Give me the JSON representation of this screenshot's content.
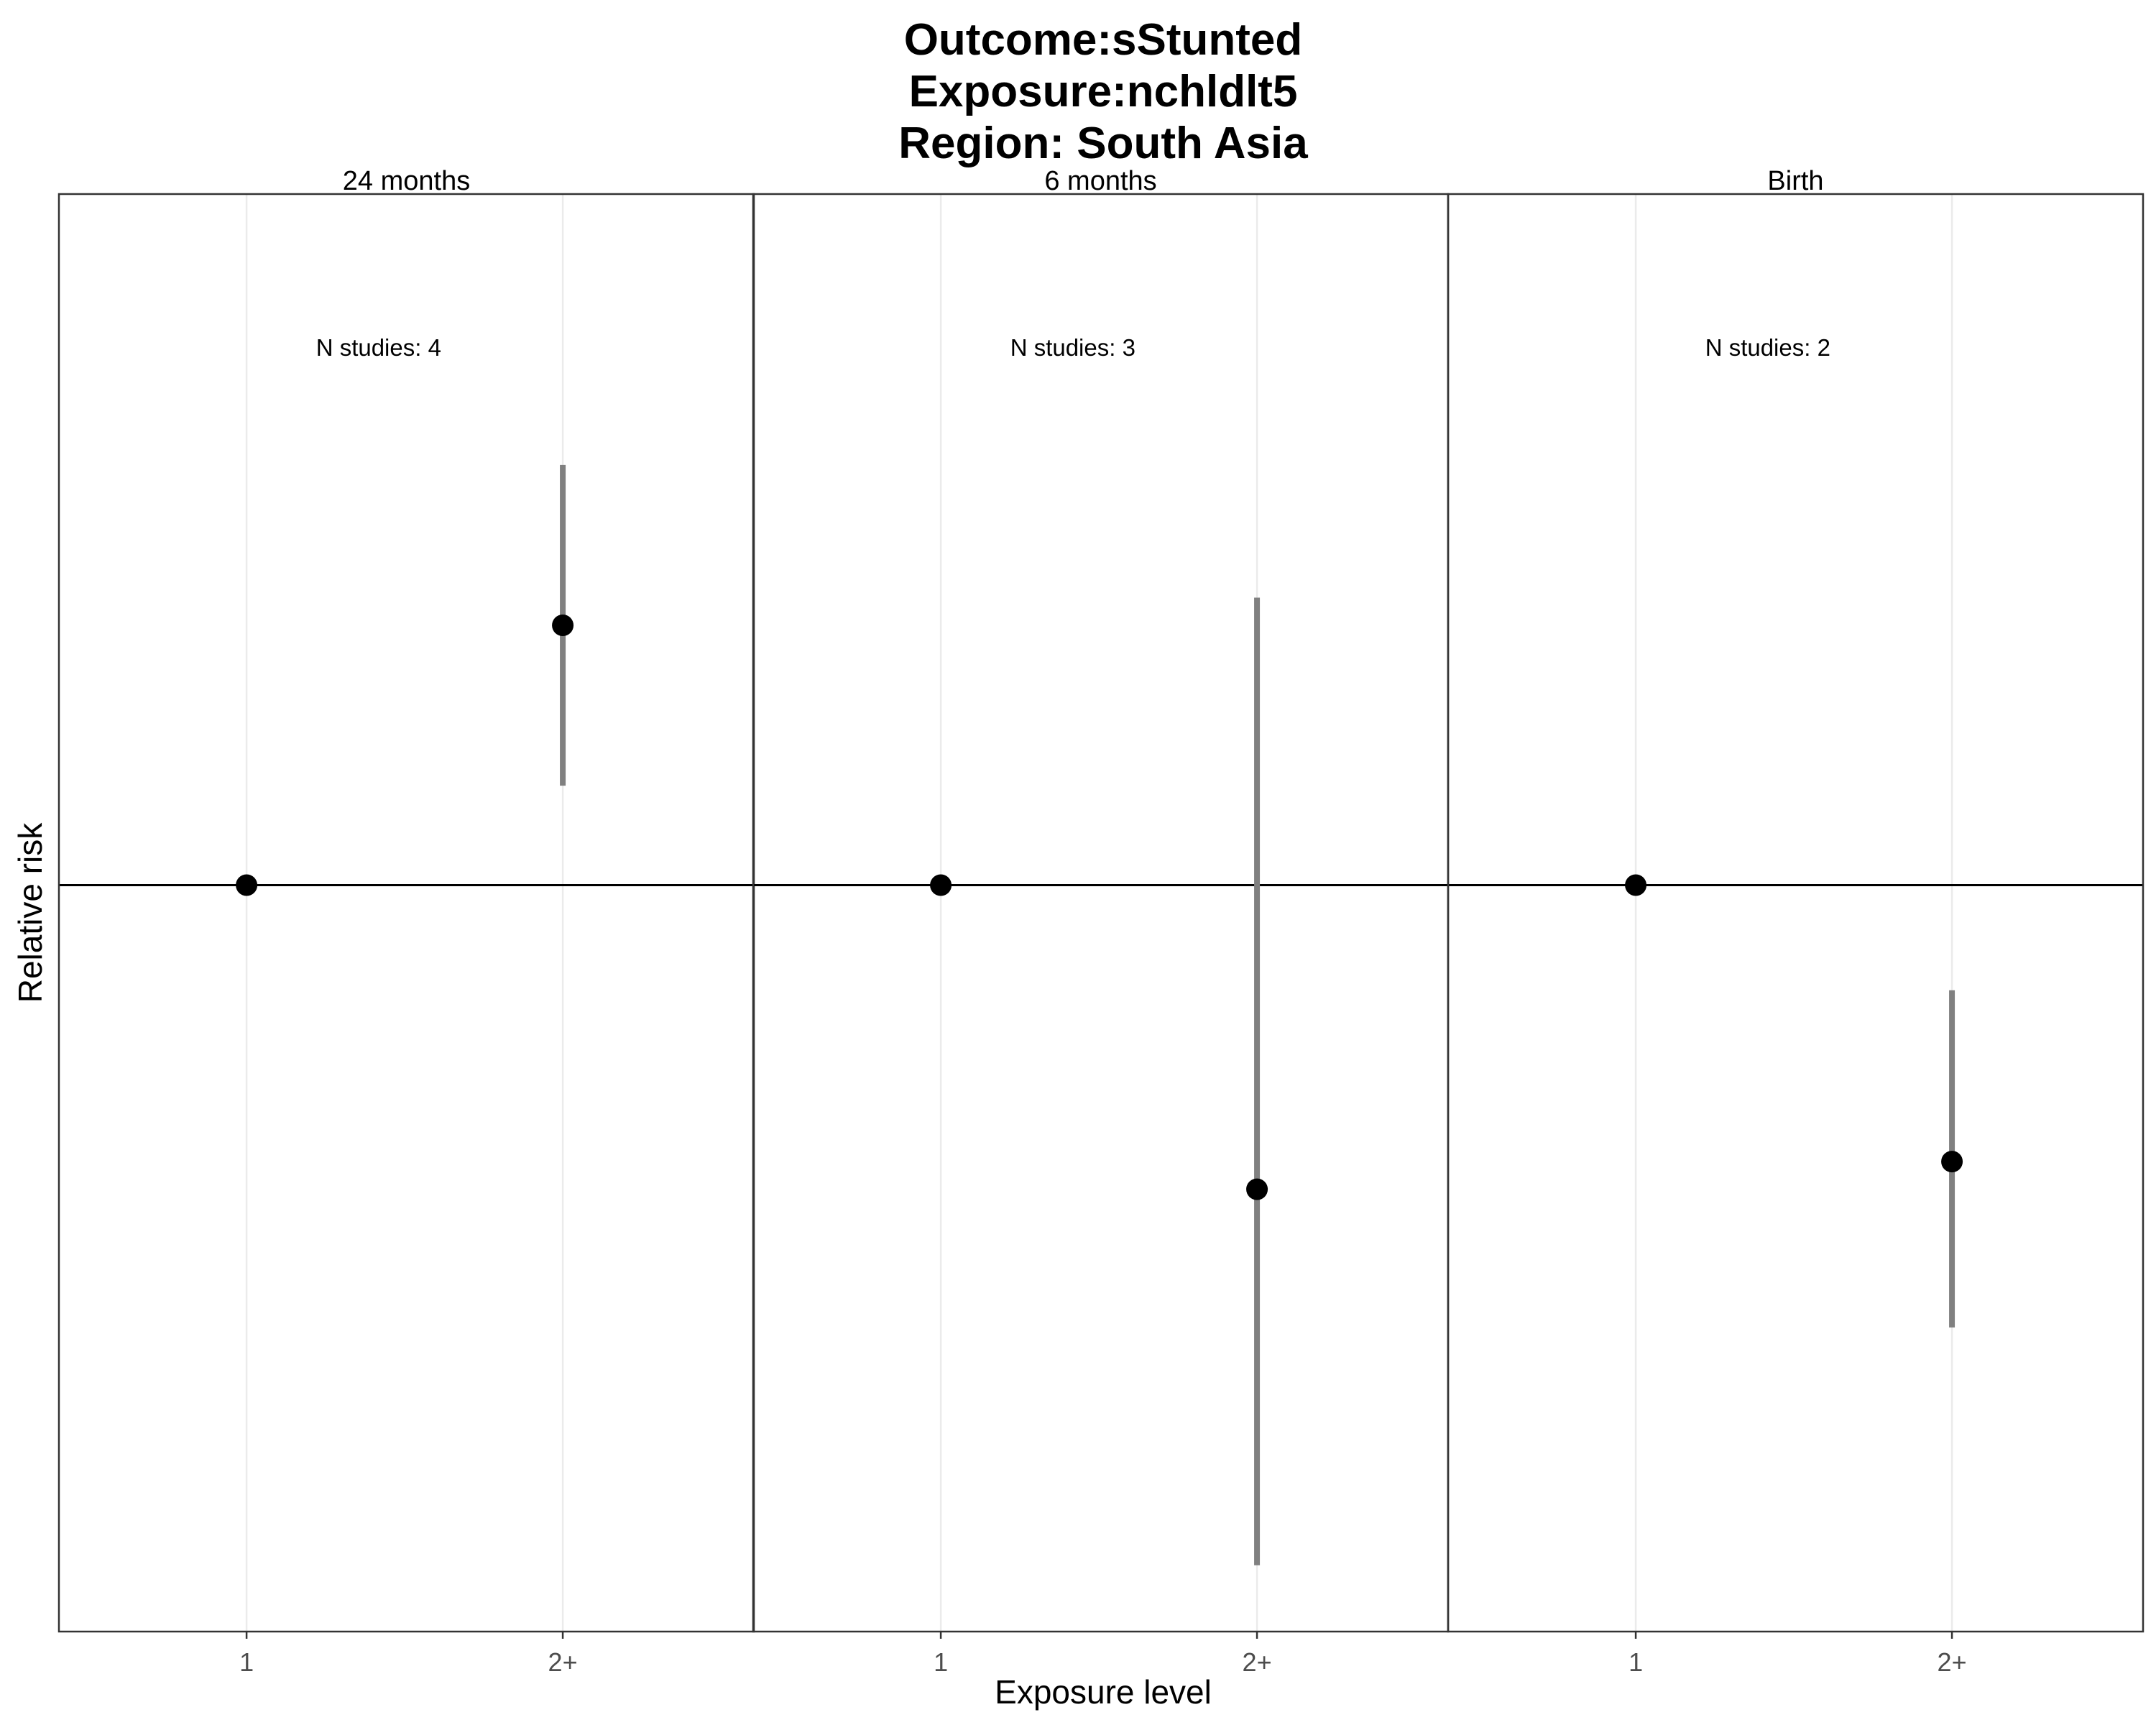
{
  "chart_data": {
    "type": "scatter",
    "title_lines": [
      "Outcome:sStunted",
      "Exposure:nchldlt5",
      "Region: South Asia"
    ],
    "xlabel": "Exposure level",
    "ylabel": "Relative risk",
    "x_categories": [
      "1",
      "2+"
    ],
    "reference_line_y": 1,
    "ylim": [
      0.865,
      1.125
    ],
    "grid": true,
    "panels": [
      {
        "strip": "24 months",
        "n_studies_label": "N studies: 4",
        "points": [
          {
            "x": "1",
            "rr": 1.0,
            "lower": null,
            "upper": null
          },
          {
            "x": "2+",
            "rr": 1.047,
            "lower": 1.018,
            "upper": 1.076
          }
        ]
      },
      {
        "strip": "6 months",
        "n_studies_label": "N studies: 3",
        "points": [
          {
            "x": "1",
            "rr": 1.0,
            "lower": null,
            "upper": null
          },
          {
            "x": "2+",
            "rr": 0.945,
            "lower": 0.877,
            "upper": 1.052
          }
        ]
      },
      {
        "strip": "Birth",
        "n_studies_label": "N studies: 2",
        "points": [
          {
            "x": "1",
            "rr": 1.0,
            "lower": null,
            "upper": null
          },
          {
            "x": "2+",
            "rr": 0.95,
            "lower": 0.92,
            "upper": 0.981
          }
        ]
      }
    ],
    "colors": {
      "point": "#000000",
      "errorbar": "#808080",
      "grid": "#ebebeb",
      "panel_border": "#333333"
    }
  }
}
